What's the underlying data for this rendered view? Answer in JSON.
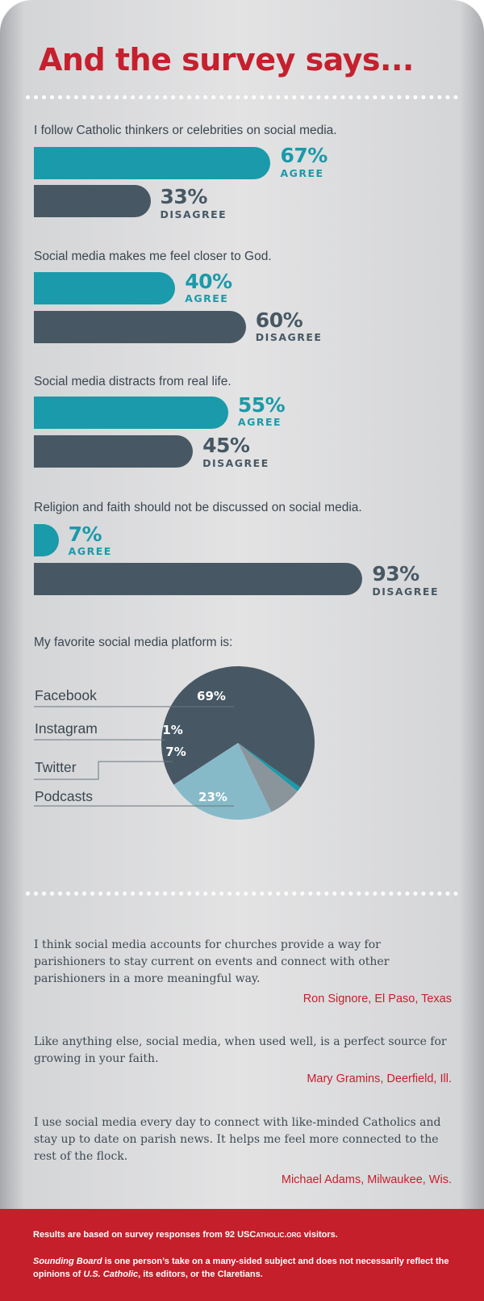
{
  "title": "And the survey says...",
  "colors": {
    "title": "#c5202e",
    "agree": "#1a9aaa",
    "disagree": "#475864",
    "author": "#c5202e",
    "footer_bg": "#c41f2a"
  },
  "chart_data": [
    {
      "type": "bar",
      "title": "I follow Catholic thinkers or celebrities on social media.",
      "categories": [
        "AGREE",
        "DISAGREE"
      ],
      "values": [
        67,
        33
      ],
      "labels": [
        "67%",
        "33%"
      ],
      "unit": "%"
    },
    {
      "type": "bar",
      "title": "Social media makes me feel closer to God.",
      "categories": [
        "AGREE",
        "DISAGREE"
      ],
      "values": [
        40,
        60
      ],
      "labels": [
        "40%",
        "60%"
      ],
      "unit": "%"
    },
    {
      "type": "bar",
      "title": "Social media distracts from real life.",
      "categories": [
        "AGREE",
        "DISAGREE"
      ],
      "values": [
        55,
        45
      ],
      "labels": [
        "55%",
        "45%"
      ],
      "unit": "%"
    },
    {
      "type": "bar",
      "title": "Religion and faith should not be discussed on social media.",
      "categories": [
        "AGREE",
        "DISAGREE"
      ],
      "values": [
        7,
        93
      ],
      "labels": [
        "7%",
        "93%"
      ],
      "unit": "%"
    },
    {
      "type": "pie",
      "title": "My favorite social media platform is:",
      "slices": [
        {
          "name": "Facebook",
          "value": 69,
          "label": "69%",
          "color": "#475864"
        },
        {
          "name": "Instagram",
          "value": 1,
          "label": "1%",
          "color": "#1a9aaa"
        },
        {
          "name": "Twitter",
          "value": 7,
          "label": "7%",
          "color": "#8a949b"
        },
        {
          "name": "Podcasts",
          "value": 23,
          "label": "23%",
          "color": "#86bac9"
        }
      ]
    }
  ],
  "quotes": [
    {
      "text": "I think social media accounts for churches provide a way for parishioners to stay current on events and connect with other parishioners in a more meaningful way.",
      "author": "Ron Signore, El Paso, Texas"
    },
    {
      "text": "Like anything else, social media, when used well, is a perfect source for growing in your faith.",
      "author": "Mary Gramins, Deerfield, Ill."
    },
    {
      "text": "I use social media every day to connect with like-minded Catholics and stay up to date on parish news. It helps me feel more connected to the rest of the flock.",
      "author": "Michael Adams, Milwaukee, Wis."
    }
  ],
  "footer": {
    "line1_prefix": "Results are based on survey responses from 92 ",
    "line1_brand_a": "USC",
    "line1_brand_b": "ATHOLIC",
    "line1_brand_c": ".",
    "line1_brand_d": "ORG",
    "line1_suffix": " visitors.",
    "line2_a": "Sounding Board",
    "line2_b": " is one person’s take on a many-sided subject and does not necessarily reflect the opinions of ",
    "line2_c": "U.S. Catholic",
    "line2_d": ", its editors, or the Claretians."
  }
}
